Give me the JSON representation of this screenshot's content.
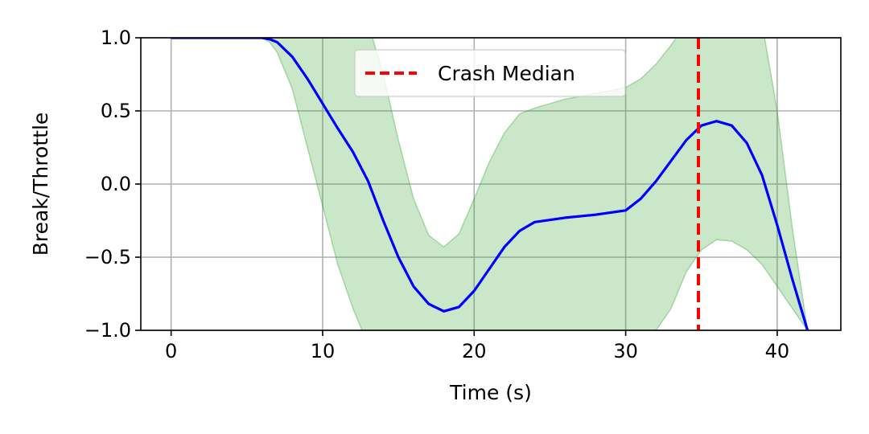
{
  "chart_data": {
    "type": "line",
    "title": "",
    "xlabel": "Time (s)",
    "ylabel": "Break/Throttle",
    "xlim": [
      -2,
      44.2
    ],
    "ylim": [
      -1.0,
      1.0
    ],
    "grid": true,
    "x_ticks": [
      0,
      10,
      20,
      30,
      40
    ],
    "x_tick_labels": [
      "0",
      "10",
      "20",
      "30",
      "40"
    ],
    "y_ticks": [
      1.0,
      0.5,
      0.0,
      -0.5,
      -1.0
    ],
    "y_tick_labels": [
      "1.0",
      "0.5",
      "0.0",
      "−0.5",
      "−1.0"
    ],
    "legend": {
      "placement": "upper-center",
      "entries": [
        "Crash Median"
      ]
    },
    "series": [
      {
        "type": "line",
        "color": "#0000ff",
        "x": [
          0,
          2,
          4,
          6,
          6.5,
          7,
          8,
          9,
          10,
          11,
          12,
          13,
          14,
          15,
          16,
          17,
          18,
          19,
          20,
          21,
          22,
          23,
          24,
          26,
          28,
          30,
          31,
          32,
          33,
          34,
          35,
          36,
          37,
          38,
          39,
          40,
          41,
          42
        ],
        "y": [
          1.0,
          1.0,
          1.0,
          1.0,
          0.99,
          0.97,
          0.87,
          0.72,
          0.55,
          0.38,
          0.22,
          0.02,
          -0.25,
          -0.5,
          -0.7,
          -0.82,
          -0.87,
          -0.84,
          -0.73,
          -0.58,
          -0.43,
          -0.32,
          -0.26,
          -0.23,
          -0.21,
          -0.18,
          -0.1,
          0.02,
          0.16,
          0.3,
          0.4,
          0.43,
          0.4,
          0.28,
          0.06,
          -0.28,
          -0.65,
          -1.0
        ]
      },
      {
        "type": "band",
        "color": "#2ca02c",
        "opacity": 0.25,
        "x": [
          0,
          6,
          6.5,
          7,
          8,
          9,
          10,
          11,
          12,
          13,
          14,
          15,
          16,
          17,
          18,
          19,
          20,
          21,
          22,
          23,
          24,
          26,
          28,
          30,
          31,
          32,
          33,
          34,
          35,
          36,
          37,
          38,
          39,
          40,
          41,
          42
        ],
        "upper": [
          1.0,
          1.0,
          1.0,
          1.0,
          1.0,
          1.0,
          1.0,
          1.0,
          1.1,
          1.1,
          0.75,
          0.3,
          -0.1,
          -0.35,
          -0.43,
          -0.34,
          -0.1,
          0.15,
          0.35,
          0.48,
          0.52,
          0.58,
          0.62,
          0.66,
          0.72,
          0.82,
          0.95,
          1.1,
          1.1,
          1.1,
          1.1,
          1.1,
          1.1,
          0.5,
          -0.3,
          -1.0
        ],
        "lower": [
          1.0,
          1.0,
          0.97,
          0.9,
          0.65,
          0.25,
          -0.15,
          -0.55,
          -0.85,
          -1.1,
          -1.1,
          -1.1,
          -1.1,
          -1.1,
          -1.1,
          -1.1,
          -1.1,
          -1.1,
          -1.1,
          -1.1,
          -1.1,
          -1.1,
          -1.1,
          -1.1,
          -1.1,
          -1.0,
          -0.85,
          -0.6,
          -0.45,
          -0.38,
          -0.39,
          -0.45,
          -0.55,
          -0.7,
          -0.85,
          -1.0
        ]
      }
    ],
    "vlines": [
      {
        "name": "Crash Median",
        "x": 34.8,
        "color": "#ff0000",
        "style": "dashed"
      }
    ]
  }
}
